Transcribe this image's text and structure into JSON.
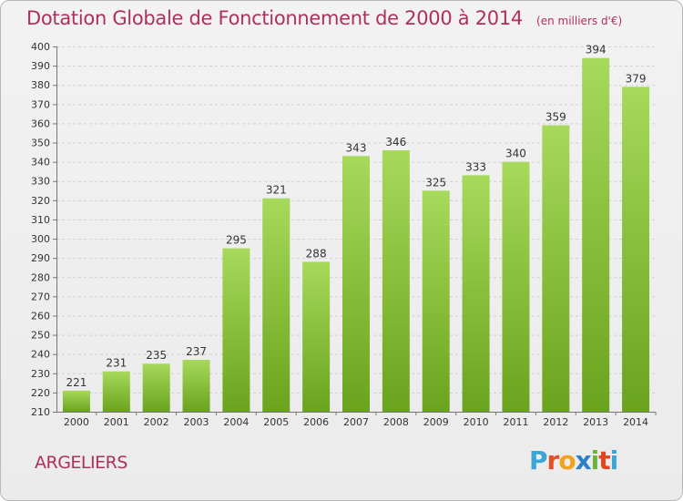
{
  "header": {
    "title": "Dotation Globale de Fonctionnement de 2000 à 2014",
    "subtitle": "(en milliers d'€)"
  },
  "footer": {
    "commune": "ARGELIERS",
    "logo_letters": [
      "P",
      "r",
      "o",
      "x",
      "i",
      "t",
      "i"
    ],
    "logo_colors": [
      "#3aa6d6",
      "#e64e23",
      "#f0a21c",
      "#2f7fc6",
      "#6bb33a",
      "#e1461f",
      "#3aa6d6"
    ]
  },
  "colors": {
    "bar_light": "#a7d95b",
    "bar_dark": "#6aa31d",
    "grid": "#cfcfcf",
    "text": "#333333",
    "accent": "#b1305a"
  },
  "chart_data": {
    "type": "bar",
    "title": "Dotation Globale de Fonctionnement de 2000 à 2014",
    "subtitle": "(en milliers d'€)",
    "xlabel": "",
    "ylabel": "",
    "categories": [
      "2000",
      "2001",
      "2002",
      "2003",
      "2004",
      "2005",
      "2006",
      "2007",
      "2008",
      "2009",
      "2010",
      "2011",
      "2012",
      "2013",
      "2014"
    ],
    "values": [
      221,
      231,
      235,
      237,
      295,
      321,
      288,
      343,
      346,
      325,
      333,
      340,
      359,
      394,
      379
    ],
    "ylim": [
      210,
      400
    ],
    "yticks": [
      210,
      220,
      230,
      240,
      250,
      260,
      270,
      280,
      290,
      300,
      310,
      320,
      330,
      340,
      350,
      360,
      370,
      380,
      390,
      400
    ],
    "grid": true,
    "legend": "none"
  }
}
